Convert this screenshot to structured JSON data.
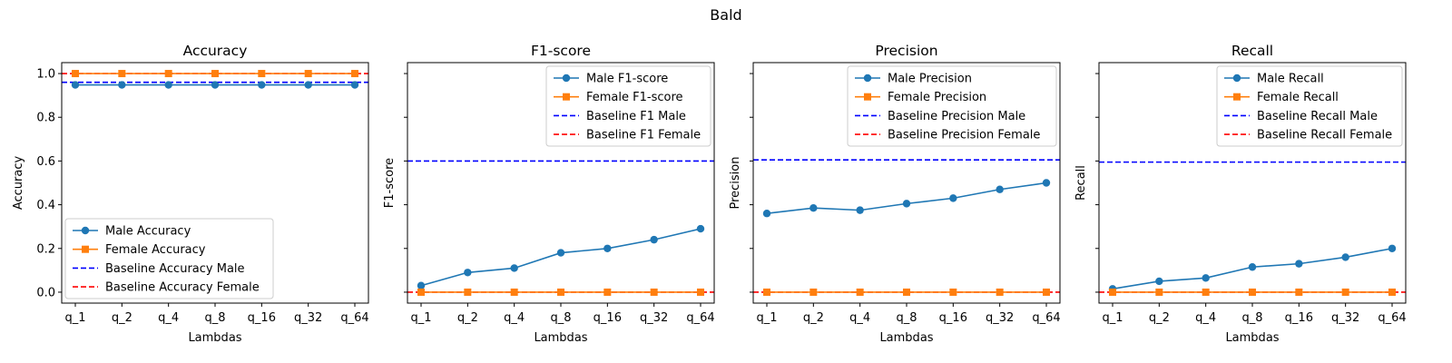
{
  "figure": {
    "suptitle": "Bald",
    "colors": {
      "male": "#1f77b4",
      "female": "#ff7f0e",
      "baseline_male": "#0000ff",
      "baseline_female": "#ff0000"
    }
  },
  "chart_data": [
    {
      "type": "line",
      "title": "Accuracy",
      "xlabel": "Lambdas",
      "ylabel": "Accuracy",
      "ylim": [
        -0.05,
        1.05
      ],
      "yticks": [
        0.0,
        0.2,
        0.4,
        0.6,
        0.8,
        1.0
      ],
      "ytick_labels": [
        "0.0",
        "0.2",
        "0.4",
        "0.6",
        "0.8",
        "1.0"
      ],
      "categories": [
        "q_1",
        "q_2",
        "q_4",
        "q_8",
        "q_16",
        "q_32",
        "q_64"
      ],
      "series": [
        {
          "name": "Male Accuracy",
          "marker": "circle",
          "values": [
            0.948,
            0.948,
            0.948,
            0.948,
            0.948,
            0.948,
            0.948
          ]
        },
        {
          "name": "Female Accuracy",
          "marker": "square",
          "values": [
            1.0,
            1.0,
            1.0,
            1.0,
            1.0,
            1.0,
            1.0
          ]
        }
      ],
      "baselines": [
        {
          "name": "Baseline Accuracy Male",
          "value": 0.96
        },
        {
          "name": "Baseline Accuracy Female",
          "value": 1.0
        }
      ],
      "legend": "lower-left",
      "grid": false
    },
    {
      "type": "line",
      "title": "F1-score",
      "xlabel": "Lambdas",
      "ylabel": "F1-score",
      "ylim": [
        -0.05,
        1.05
      ],
      "yticks": [
        0.0,
        0.2,
        0.4,
        0.6,
        0.8,
        1.0
      ],
      "ytick_labels": [],
      "categories": [
        "q_1",
        "q_2",
        "q_4",
        "q_8",
        "q_16",
        "q_32",
        "q_64"
      ],
      "series": [
        {
          "name": "Male F1-score",
          "marker": "circle",
          "values": [
            0.03,
            0.09,
            0.11,
            0.18,
            0.2,
            0.24,
            0.29
          ]
        },
        {
          "name": "Female F1-score",
          "marker": "square",
          "values": [
            0.0,
            0.0,
            0.0,
            0.0,
            0.0,
            0.0,
            0.0
          ]
        }
      ],
      "baselines": [
        {
          "name": "Baseline F1 Male",
          "value": 0.6
        },
        {
          "name": "Baseline F1 Female",
          "value": 0.0
        }
      ],
      "legend": "upper-right",
      "grid": false
    },
    {
      "type": "line",
      "title": "Precision",
      "xlabel": "Lambdas",
      "ylabel": "Precision",
      "ylim": [
        -0.05,
        1.05
      ],
      "yticks": [
        0.0,
        0.2,
        0.4,
        0.6,
        0.8,
        1.0
      ],
      "ytick_labels": [],
      "categories": [
        "q_1",
        "q_2",
        "q_4",
        "q_8",
        "q_16",
        "q_32",
        "q_64"
      ],
      "series": [
        {
          "name": "Male Precision",
          "marker": "circle",
          "values": [
            0.36,
            0.385,
            0.375,
            0.405,
            0.43,
            0.47,
            0.5
          ]
        },
        {
          "name": "Female Precision",
          "marker": "square",
          "values": [
            0.0,
            0.0,
            0.0,
            0.0,
            0.0,
            0.0,
            0.0
          ]
        }
      ],
      "baselines": [
        {
          "name": "Baseline Precision Male",
          "value": 0.605
        },
        {
          "name": "Baseline Precision Female",
          "value": 0.0
        }
      ],
      "legend": "upper-right",
      "grid": false
    },
    {
      "type": "line",
      "title": "Recall",
      "xlabel": "Lambdas",
      "ylabel": "Recall",
      "ylim": [
        -0.05,
        1.05
      ],
      "yticks": [
        0.0,
        0.2,
        0.4,
        0.6,
        0.8,
        1.0
      ],
      "ytick_labels": [],
      "categories": [
        "q_1",
        "q_2",
        "q_4",
        "q_8",
        "q_16",
        "q_32",
        "q_64"
      ],
      "series": [
        {
          "name": "Male Recall",
          "marker": "circle",
          "values": [
            0.015,
            0.05,
            0.065,
            0.115,
            0.13,
            0.16,
            0.2
          ]
        },
        {
          "name": "Female Recall",
          "marker": "square",
          "values": [
            0.0,
            0.0,
            0.0,
            0.0,
            0.0,
            0.0,
            0.0
          ]
        }
      ],
      "baselines": [
        {
          "name": "Baseline Recall Male",
          "value": 0.595
        },
        {
          "name": "Baseline Recall Female",
          "value": 0.0
        }
      ],
      "legend": "upper-right",
      "grid": false
    }
  ]
}
